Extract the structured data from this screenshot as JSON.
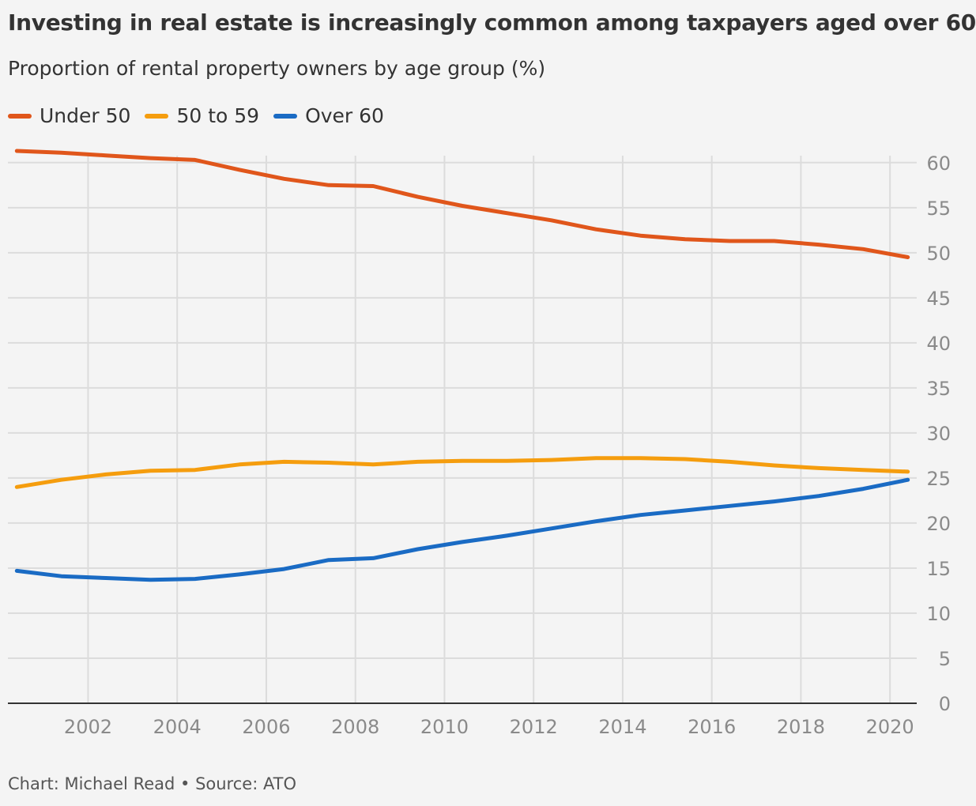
{
  "title": "Investing in real estate is increasingly common among taxpayers aged over 60",
  "subtitle": "Proportion of rental property owners by age group (%)",
  "source": "Chart: Michael Read • Source: ATO",
  "legend": [
    {
      "label": "Under 50",
      "color": "#e0561b"
    },
    {
      "label": "50 to 59",
      "color": "#f59d0e"
    },
    {
      "label": "Over 60",
      "color": "#1a6bc4"
    }
  ],
  "chart_data": {
    "type": "line",
    "title": "Investing in real estate is increasingly common among taxpayers aged over 60",
    "subtitle": "Proportion of rental property owners by age group (%)",
    "xlabel": "",
    "ylabel": "",
    "xlim": [
      2000.2,
      2020.6
    ],
    "ylim": [
      0,
      62
    ],
    "y_axis_position": "right",
    "grid": true,
    "legend_position": "top-left",
    "x_ticks": [
      2002,
      2004,
      2006,
      2008,
      2010,
      2012,
      2014,
      2016,
      2018,
      2020
    ],
    "y_ticks": [
      0,
      5,
      10,
      15,
      20,
      25,
      30,
      35,
      40,
      45,
      50,
      55,
      60
    ],
    "x": [
      2000.4,
      2001.4,
      2002.4,
      2003.4,
      2004.4,
      2005.4,
      2006.4,
      2007.4,
      2008.4,
      2009.4,
      2010.4,
      2011.4,
      2012.4,
      2013.4,
      2014.4,
      2015.4,
      2016.4,
      2017.4,
      2018.4,
      2019.4,
      2020.4
    ],
    "series": [
      {
        "name": "Under 50",
        "color": "#e0561b",
        "values": [
          61.3,
          61.1,
          60.8,
          60.5,
          60.3,
          59.2,
          58.2,
          57.5,
          57.4,
          56.2,
          55.2,
          54.4,
          53.6,
          52.6,
          51.9,
          51.5,
          51.3,
          51.3,
          50.9,
          50.4,
          49.5
        ]
      },
      {
        "name": "50 to 59",
        "color": "#f59d0e",
        "values": [
          24.0,
          24.8,
          25.4,
          25.8,
          25.9,
          26.5,
          26.8,
          26.7,
          26.5,
          26.8,
          26.9,
          26.9,
          27.0,
          27.2,
          27.2,
          27.1,
          26.8,
          26.4,
          26.1,
          25.9,
          25.7
        ]
      },
      {
        "name": "Over 60",
        "color": "#1a6bc4",
        "values": [
          14.7,
          14.1,
          13.9,
          13.7,
          13.8,
          14.3,
          14.9,
          15.9,
          16.1,
          17.1,
          17.9,
          18.6,
          19.4,
          20.2,
          20.9,
          21.4,
          21.9,
          22.4,
          23.0,
          23.8,
          24.8
        ]
      }
    ]
  }
}
